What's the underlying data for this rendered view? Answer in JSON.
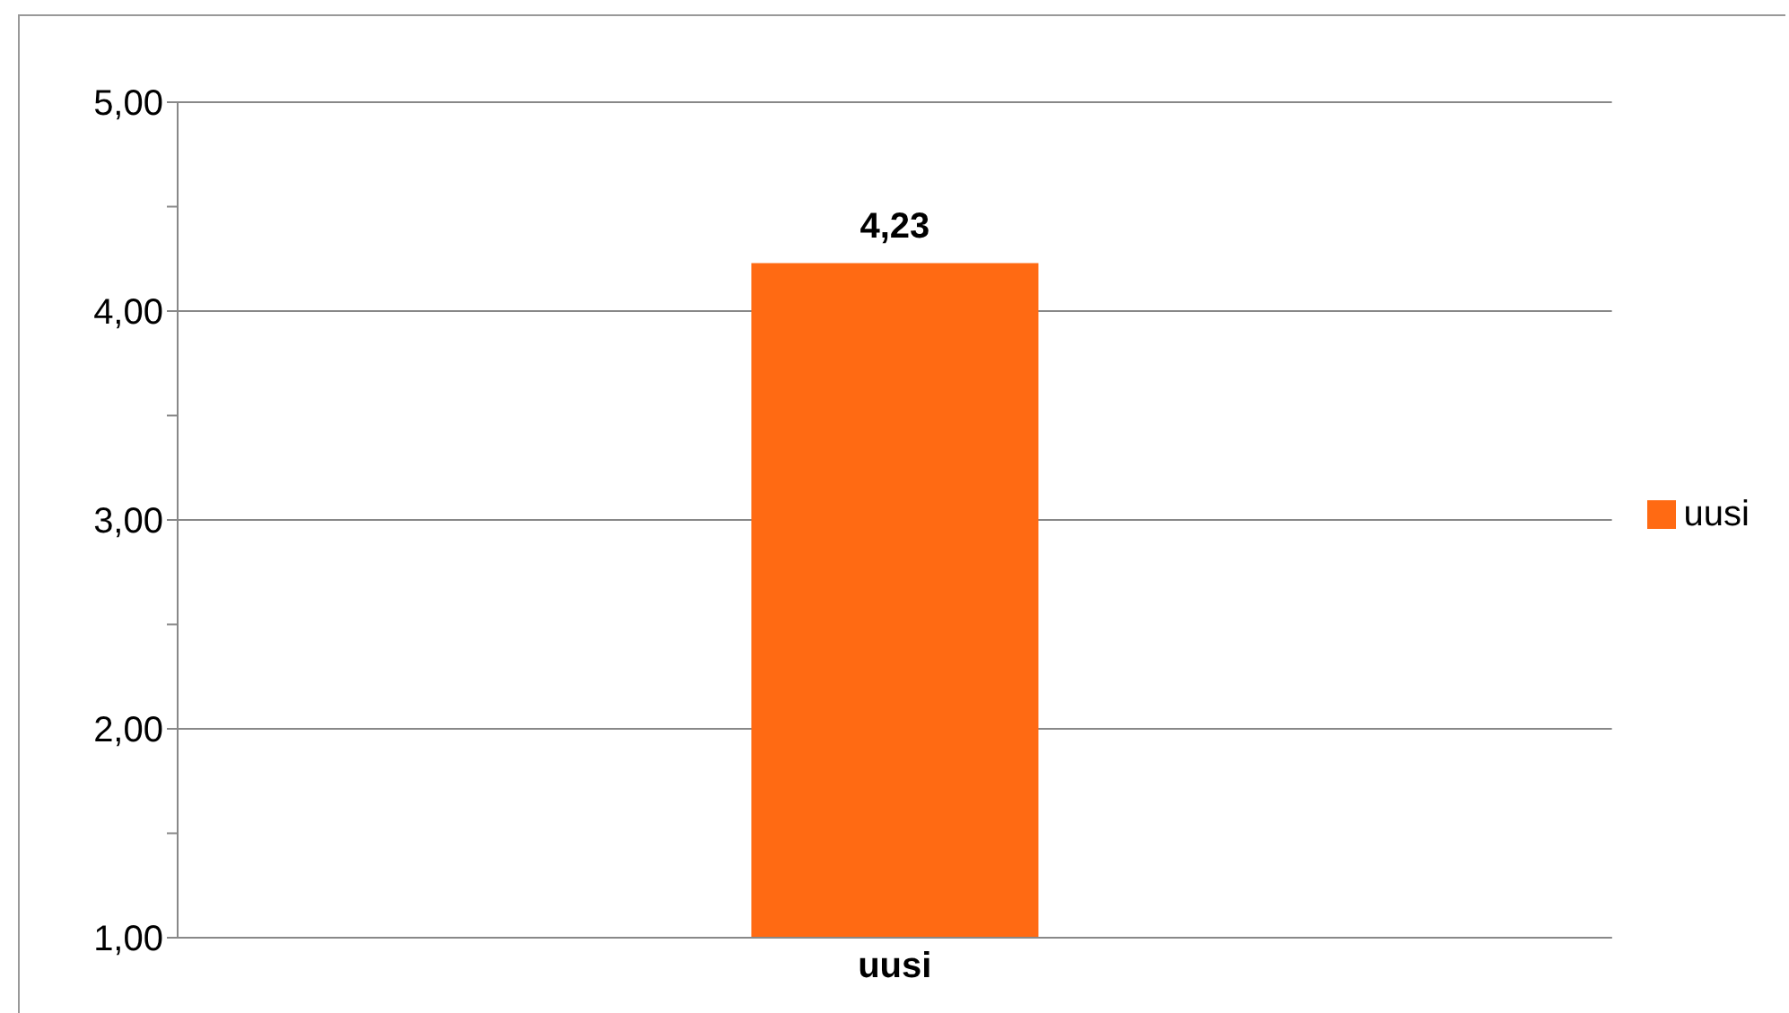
{
  "chart_data": {
    "type": "bar",
    "categories": [
      "uusi"
    ],
    "series": [
      {
        "name": "uusi",
        "color": "#ff6a13",
        "values": [
          4.23
        ],
        "value_labels": [
          "4,23"
        ]
      }
    ],
    "ylim": [
      1,
      5
    ],
    "yticks": [
      {
        "value": 1,
        "label": "1,00"
      },
      {
        "value": 1.5,
        "label": null
      },
      {
        "value": 2,
        "label": "2,00"
      },
      {
        "value": 2.5,
        "label": null
      },
      {
        "value": 3,
        "label": "3,00"
      },
      {
        "value": 3.5,
        "label": null
      },
      {
        "value": 4,
        "label": "4,00"
      },
      {
        "value": 4.5,
        "label": null
      },
      {
        "value": 5,
        "label": "5,00"
      }
    ],
    "grid": "y",
    "legend": "right"
  }
}
